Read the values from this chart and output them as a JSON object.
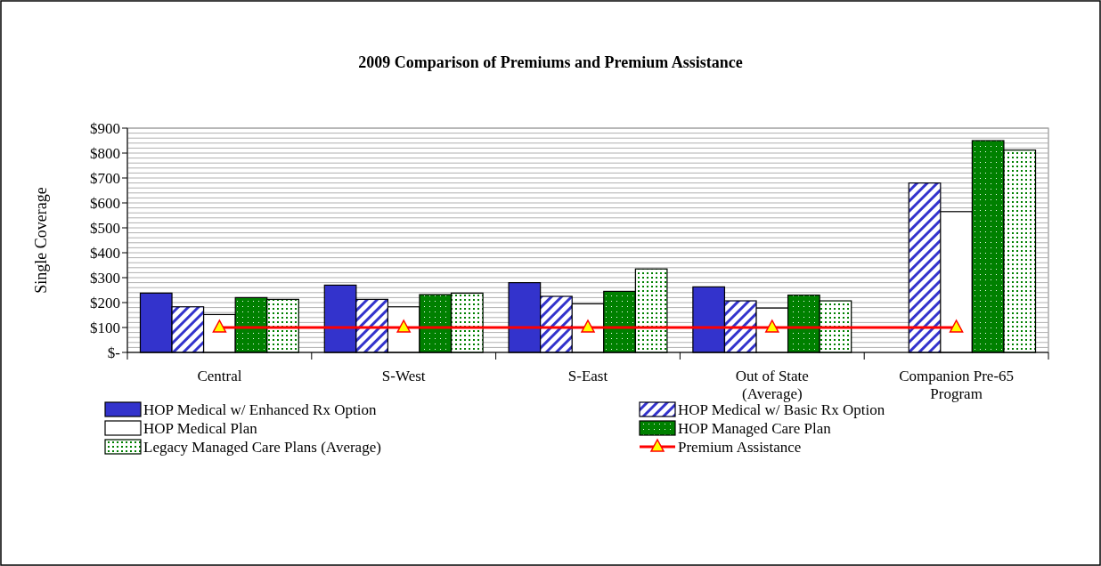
{
  "chart_data": {
    "type": "bar",
    "title": "2009 Comparison of Premiums and Premium Assistance",
    "ylabel": "Single Coverage",
    "categories": [
      "Central",
      "S-West",
      "S-East",
      "Out of State\n(Average)",
      "Companion Pre-65\nProgram"
    ],
    "series": [
      {
        "name": "HOP Medical w/ Enhanced Rx Option",
        "color": "#3333cc",
        "values": [
          238,
          270,
          280,
          263,
          null
        ]
      },
      {
        "name": "HOP Medical w/ Basic Rx Option",
        "color": "#3333cc",
        "values": [
          183,
          213,
          225,
          207,
          680
        ]
      },
      {
        "name": "HOP Medical Plan",
        "color": "#ffffff",
        "values": [
          152,
          183,
          195,
          178,
          565
        ]
      },
      {
        "name": "HOP Managed Care Plan",
        "color": "#008000",
        "values": [
          220,
          232,
          245,
          230,
          850
        ]
      },
      {
        "name": "Legacy Managed Care Plans (Average)",
        "color": "#008000",
        "values": [
          213,
          238,
          335,
          207,
          812
        ]
      },
      {
        "name": "Premium Assistance",
        "type": "line",
        "color": "#ff0000",
        "marker": "triangle",
        "values": [
          100,
          100,
          100,
          100,
          100
        ]
      }
    ],
    "ylim": [
      0,
      900
    ],
    "yticks": [
      {
        "value": 0,
        "label": "$-"
      },
      {
        "value": 100,
        "label": "$100"
      },
      {
        "value": 200,
        "label": "$200"
      },
      {
        "value": 300,
        "label": "$300"
      },
      {
        "value": 400,
        "label": "$400"
      },
      {
        "value": 500,
        "label": "$500"
      },
      {
        "value": 600,
        "label": "$600"
      },
      {
        "value": 700,
        "label": "$700"
      },
      {
        "value": 800,
        "label": "$800"
      },
      {
        "value": 900,
        "label": "$900"
      }
    ],
    "grid": "y",
    "legend": "bottom"
  }
}
